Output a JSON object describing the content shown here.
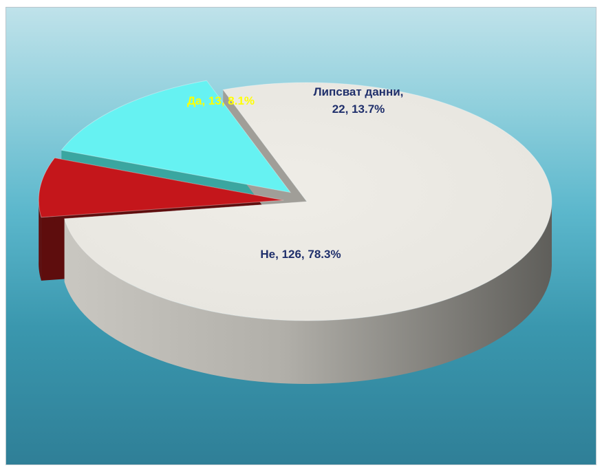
{
  "chart_data": {
    "type": "pie",
    "style": "3d-exploded",
    "legend": "none",
    "slices": [
      {
        "label": "Не",
        "value": 126,
        "percent": 78.3,
        "color": "#ebe9e3",
        "side_color": "#a09e98",
        "label_color": "#1f2f6b",
        "label_lines": [
          "Не, 126, 78.3%"
        ]
      },
      {
        "label": "Да",
        "value": 13,
        "percent": 8.1,
        "color": "#c4161b",
        "side_color": "#5e0d0d",
        "label_color": "#ffff00",
        "label_lines": [
          "Да, 13, 8.1%"
        ]
      },
      {
        "label": "Липсват данни",
        "value": 22,
        "percent": 13.7,
        "color": "#66f2f2",
        "side_color": "#3aa6a0",
        "label_color": "#1f2f6b",
        "label_lines": [
          "Липсват данни,",
          "22, 13.7%"
        ]
      }
    ]
  }
}
